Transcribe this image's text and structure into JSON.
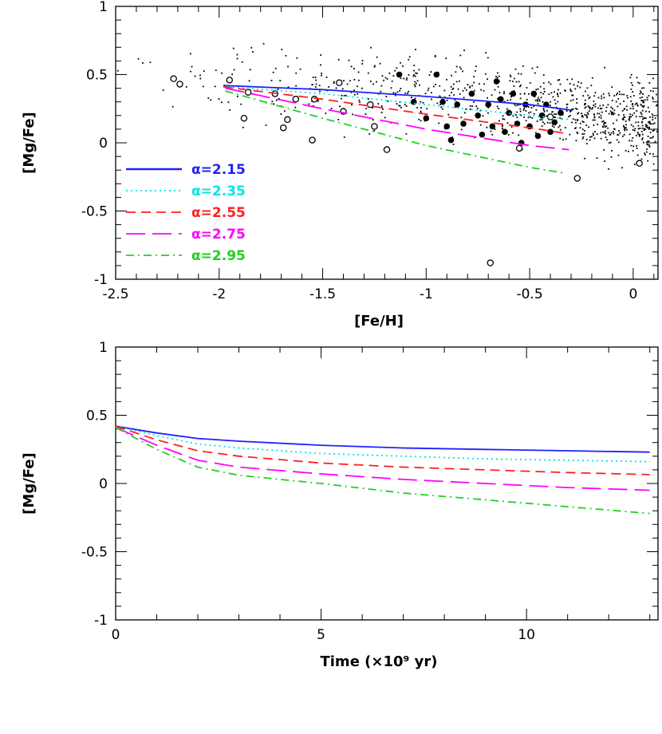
{
  "chart_data": [
    {
      "type": "line",
      "xlabel": "[Fe/H]",
      "ylabel": "[Mg/Fe]",
      "xlim": [
        -2.5,
        0.12
      ],
      "ylim": [
        -1,
        1
      ],
      "xticks": [
        -2.5,
        -2,
        -1.5,
        -1,
        -0.5,
        0
      ],
      "yticks": [
        -1,
        -0.5,
        0,
        0.5,
        1
      ],
      "xtick_labels": [
        "-2.5",
        "-2",
        "-1.5",
        "-1",
        "-0.5",
        "0"
      ],
      "ytick_labels": [
        "-1",
        "-0.5",
        "0",
        "0.5",
        "1"
      ],
      "legend_position": "bottom-left",
      "series": [
        {
          "name": "α=2.15",
          "color": "#2020ff",
          "dash": "solid",
          "x": [
            -1.98,
            -1.5,
            -1.0,
            -0.5,
            -0.3
          ],
          "y": [
            0.42,
            0.39,
            0.34,
            0.28,
            0.24
          ]
        },
        {
          "name": "α=2.35",
          "color": "#00e5e5",
          "dash": "dotted",
          "x": [
            -1.98,
            -1.5,
            -1.0,
            -0.5,
            -0.3
          ],
          "y": [
            0.41,
            0.36,
            0.28,
            0.2,
            0.17
          ]
        },
        {
          "name": "α=2.55",
          "color": "#ff2020",
          "dash": "dashed",
          "x": [
            -1.98,
            -1.5,
            -1.0,
            -0.5,
            -0.33
          ],
          "y": [
            0.41,
            0.32,
            0.21,
            0.11,
            0.07
          ]
        },
        {
          "name": "α=2.75",
          "color": "#ff00ff",
          "dash": "longdash",
          "x": [
            -1.97,
            -1.5,
            -1.0,
            -0.5,
            -0.31
          ],
          "y": [
            0.4,
            0.25,
            0.1,
            -0.02,
            -0.05
          ]
        },
        {
          "name": "α=2.95",
          "color": "#20d020",
          "dash": "dashdot",
          "x": [
            -1.97,
            -1.5,
            -1.0,
            -0.5,
            -0.34
          ],
          "y": [
            0.38,
            0.18,
            -0.02,
            -0.18,
            -0.22
          ]
        }
      ],
      "observations": {
        "open_circles": [
          {
            "x": -2.22,
            "y": 0.47
          },
          {
            "x": -2.19,
            "y": 0.43
          },
          {
            "x": -1.95,
            "y": 0.46
          },
          {
            "x": -1.88,
            "y": 0.18
          },
          {
            "x": -1.86,
            "y": 0.37
          },
          {
            "x": -1.73,
            "y": 0.36
          },
          {
            "x": -1.67,
            "y": 0.17
          },
          {
            "x": -1.69,
            "y": 0.11
          },
          {
            "x": -1.63,
            "y": 0.32
          },
          {
            "x": -1.55,
            "y": 0.02
          },
          {
            "x": -1.54,
            "y": 0.32
          },
          {
            "x": -1.42,
            "y": 0.44
          },
          {
            "x": -1.4,
            "y": 0.23
          },
          {
            "x": -1.27,
            "y": 0.28
          },
          {
            "x": -1.25,
            "y": 0.12
          },
          {
            "x": -1.19,
            "y": -0.05
          },
          {
            "x": -0.69,
            "y": -0.88
          },
          {
            "x": -0.55,
            "y": -0.04
          },
          {
            "x": -0.4,
            "y": 0.19
          },
          {
            "x": -0.27,
            "y": -0.26
          },
          {
            "x": 0.03,
            "y": -0.15
          }
        ],
        "filled_circles": [
          {
            "x": -1.13,
            "y": 0.5
          },
          {
            "x": -1.06,
            "y": 0.3
          },
          {
            "x": -1.0,
            "y": 0.18
          },
          {
            "x": -0.95,
            "y": 0.5
          },
          {
            "x": -0.92,
            "y": 0.3
          },
          {
            "x": -0.9,
            "y": 0.12
          },
          {
            "x": -0.88,
            "y": 0.02
          },
          {
            "x": -0.85,
            "y": 0.28
          },
          {
            "x": -0.82,
            "y": 0.14
          },
          {
            "x": -0.78,
            "y": 0.36
          },
          {
            "x": -0.75,
            "y": 0.2
          },
          {
            "x": -0.73,
            "y": 0.06
          },
          {
            "x": -0.7,
            "y": 0.28
          },
          {
            "x": -0.68,
            "y": 0.12
          },
          {
            "x": -0.66,
            "y": 0.45
          },
          {
            "x": -0.64,
            "y": 0.32
          },
          {
            "x": -0.62,
            "y": 0.08
          },
          {
            "x": -0.6,
            "y": 0.22
          },
          {
            "x": -0.58,
            "y": 0.36
          },
          {
            "x": -0.56,
            "y": 0.14
          },
          {
            "x": -0.54,
            "y": 0.0
          },
          {
            "x": -0.52,
            "y": 0.28
          },
          {
            "x": -0.5,
            "y": 0.12
          },
          {
            "x": -0.48,
            "y": 0.36
          },
          {
            "x": -0.46,
            "y": 0.05
          },
          {
            "x": -0.44,
            "y": 0.2
          },
          {
            "x": -0.42,
            "y": 0.28
          },
          {
            "x": -0.4,
            "y": 0.08
          },
          {
            "x": -0.38,
            "y": 0.15
          },
          {
            "x": -0.35,
            "y": 0.22
          }
        ]
      }
    },
    {
      "type": "line",
      "xlabel": "Time (×10⁹ yr)",
      "ylabel": "[Mg/Fe]",
      "xlim": [
        0,
        13.2
      ],
      "ylim": [
        -1,
        1
      ],
      "xticks": [
        0,
        5,
        10
      ],
      "yticks": [
        -1,
        -0.5,
        0,
        0.5,
        1
      ],
      "xtick_labels": [
        "0",
        "5",
        "10"
      ],
      "ytick_labels": [
        "-1",
        "-0.5",
        "0",
        "0.5",
        "1"
      ],
      "series": [
        {
          "color": "#2020ff",
          "dash": "solid",
          "x": [
            0,
            1,
            2,
            3,
            5,
            7,
            9,
            11,
            13
          ],
          "y": [
            0.42,
            0.37,
            0.33,
            0.31,
            0.28,
            0.26,
            0.25,
            0.24,
            0.23
          ]
        },
        {
          "color": "#00e5e5",
          "dash": "dotted",
          "x": [
            0,
            1,
            2,
            3,
            5,
            7,
            9,
            11,
            13
          ],
          "y": [
            0.42,
            0.35,
            0.29,
            0.26,
            0.22,
            0.2,
            0.18,
            0.17,
            0.16
          ]
        },
        {
          "color": "#ff2020",
          "dash": "dashed",
          "x": [
            0,
            1,
            2,
            3,
            5,
            7,
            9,
            11,
            13
          ],
          "y": [
            0.42,
            0.32,
            0.24,
            0.2,
            0.15,
            0.12,
            0.1,
            0.08,
            0.065
          ]
        },
        {
          "color": "#ff00ff",
          "dash": "longdash",
          "x": [
            0,
            1,
            2,
            3,
            5,
            7,
            9,
            11,
            13
          ],
          "y": [
            0.41,
            0.28,
            0.17,
            0.12,
            0.07,
            0.03,
            0.0,
            -0.03,
            -0.05
          ]
        },
        {
          "color": "#20d020",
          "dash": "dashdot",
          "x": [
            0,
            1,
            2,
            3,
            5,
            7,
            9,
            11,
            13
          ],
          "y": [
            0.41,
            0.25,
            0.12,
            0.06,
            0.0,
            -0.07,
            -0.12,
            -0.17,
            -0.22
          ]
        }
      ]
    }
  ]
}
